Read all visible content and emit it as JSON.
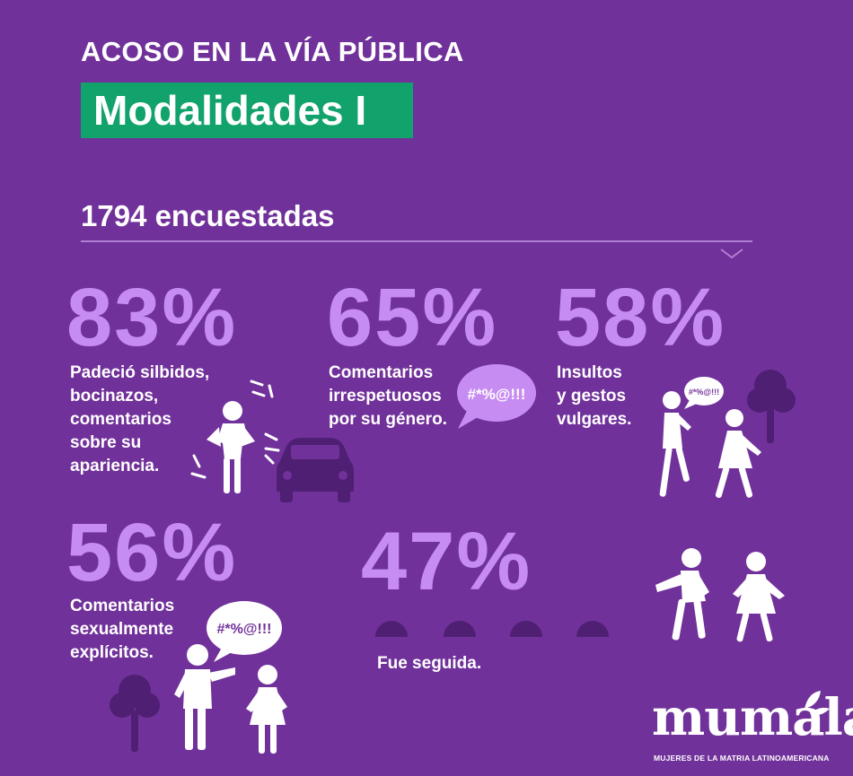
{
  "header": {
    "title": "ACOSO EN LA VÍA PÚBLICA",
    "subtitle": "Modalidades I",
    "respondents": "1794 encuestadas"
  },
  "stats": [
    {
      "percent": "83%",
      "label": "Padeció silbidos,\nbocinazos,\ncomentarios\nsobre su\napariencia."
    },
    {
      "percent": "65%",
      "label": "Comentarios\nirrespetuosos\npor su género."
    },
    {
      "percent": "58%",
      "label": "Insultos\ny gestos\nvulgares."
    },
    {
      "percent": "56%",
      "label": "Comentarios\nsexualmente\nexplícitos."
    },
    {
      "percent": "47%",
      "label": "Fue seguida."
    }
  ],
  "speech_bubbles": {
    "large": "#*%@!!!",
    "small": "#*%@!!!"
  },
  "logo": {
    "name": "mumala",
    "tagline": "MUJERES DE LA MATRIA LATINOAMERICANA"
  },
  "colors": {
    "background": "#71319a",
    "accent_green": "#12a26c",
    "percent_lilac": "#c78cf1",
    "icon_dark": "#4e1f72"
  }
}
